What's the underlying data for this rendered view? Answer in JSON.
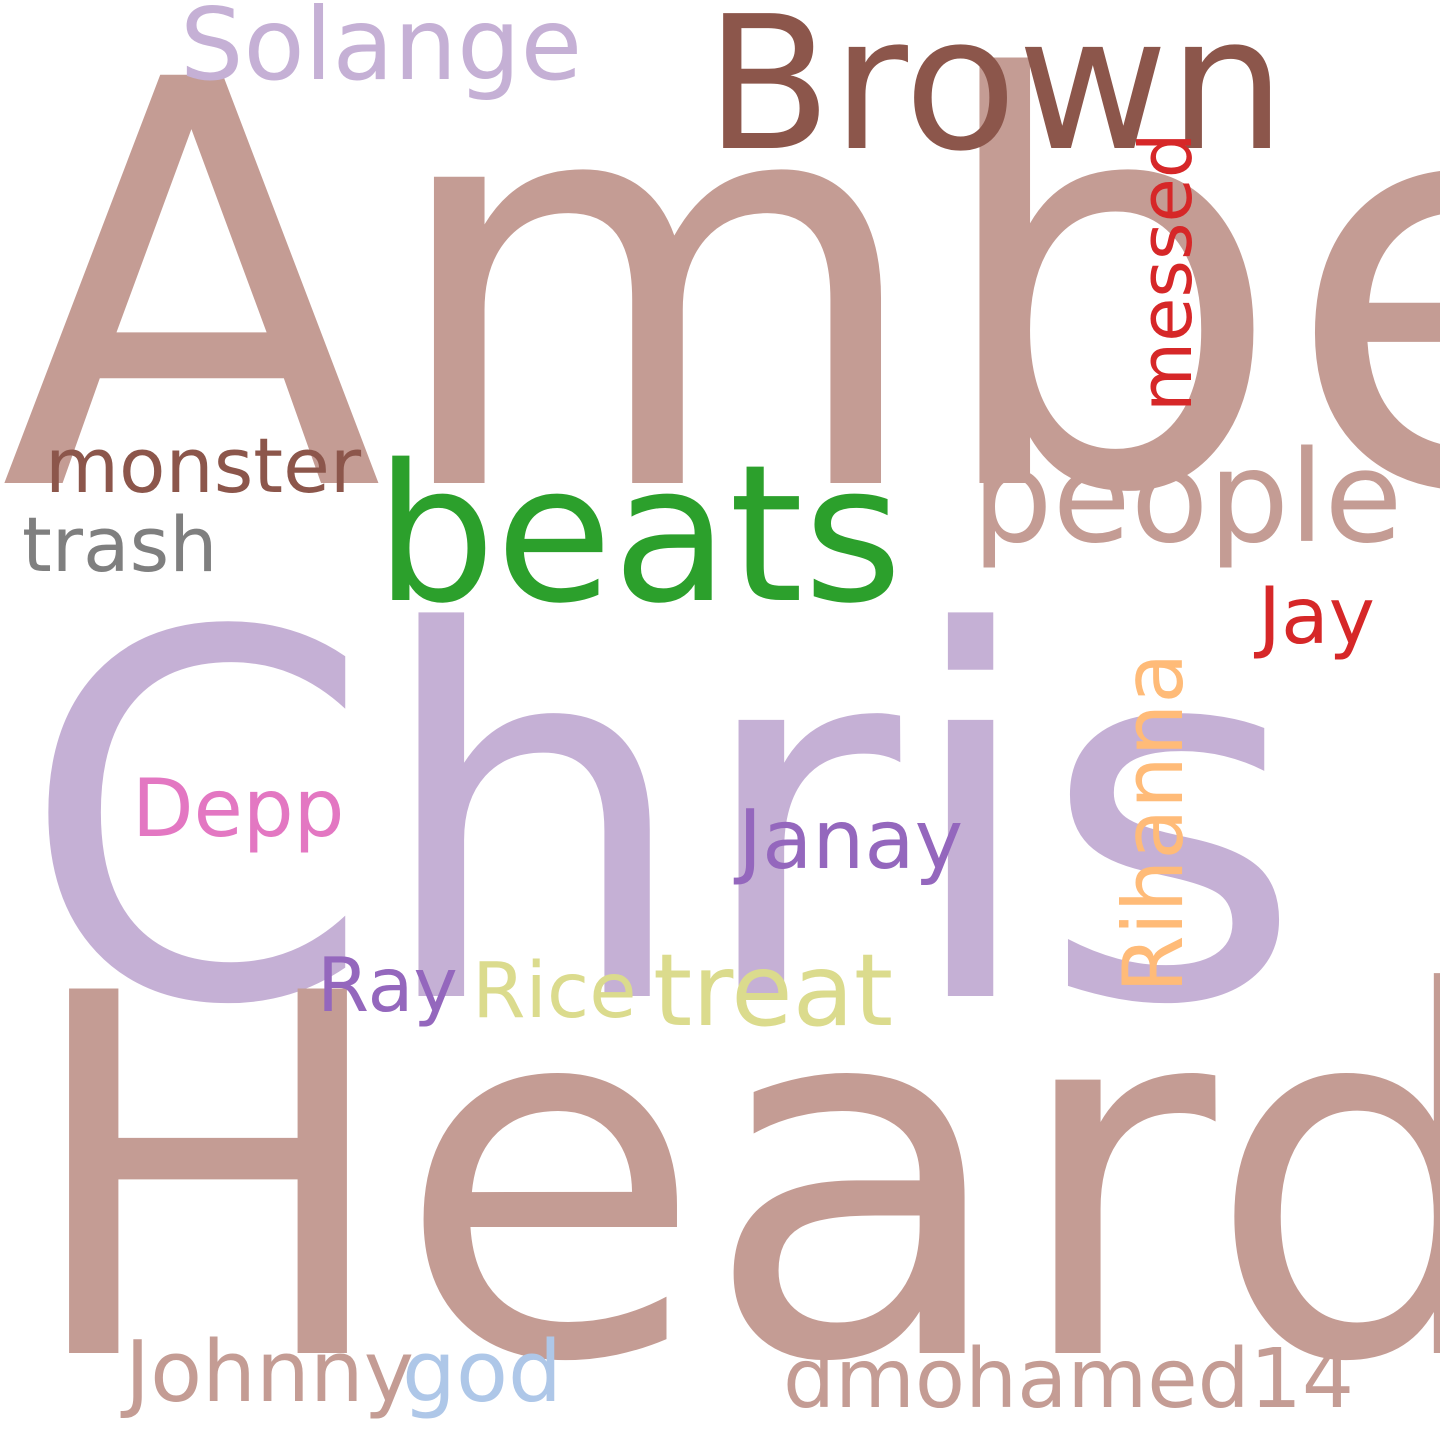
{
  "words": {
    "amber": {
      "text": "Amber",
      "color": "#c49c94"
    },
    "chris": {
      "text": "Chris",
      "color": "#c5b0d5"
    },
    "heard": {
      "text": "Heard",
      "color": "#c49c94"
    },
    "brown": {
      "text": "Brown",
      "color": "#8c564b"
    },
    "beats": {
      "text": "beats",
      "color": "#2ca02c"
    },
    "solange": {
      "text": "Solange",
      "color": "#c5b0d5"
    },
    "people": {
      "text": "people",
      "color": "#c49c94"
    },
    "messed": {
      "text": "messed",
      "color": "#d62728"
    },
    "monster": {
      "text": "monster",
      "color": "#8c564b"
    },
    "trash": {
      "text": "trash",
      "color": "#7f7f7f"
    },
    "jay": {
      "text": "Jay",
      "color": "#d62728"
    },
    "rihanna": {
      "text": "Rihanna",
      "color": "#ffbb78"
    },
    "depp": {
      "text": "Depp",
      "color": "#e377c2"
    },
    "janay": {
      "text": "Janay",
      "color": "#9467bd"
    },
    "ray": {
      "text": "Ray",
      "color": "#9467bd"
    },
    "rice": {
      "text": "Rice",
      "color": "#dbdb8d"
    },
    "treat": {
      "text": "treat",
      "color": "#dbdb8d"
    },
    "johnny": {
      "text": "Johnny",
      "color": "#c49c94"
    },
    "god": {
      "text": "god",
      "color": "#aec7e8"
    },
    "dmohamed": {
      "text": "dmohamed14",
      "color": "#c49c94"
    }
  }
}
